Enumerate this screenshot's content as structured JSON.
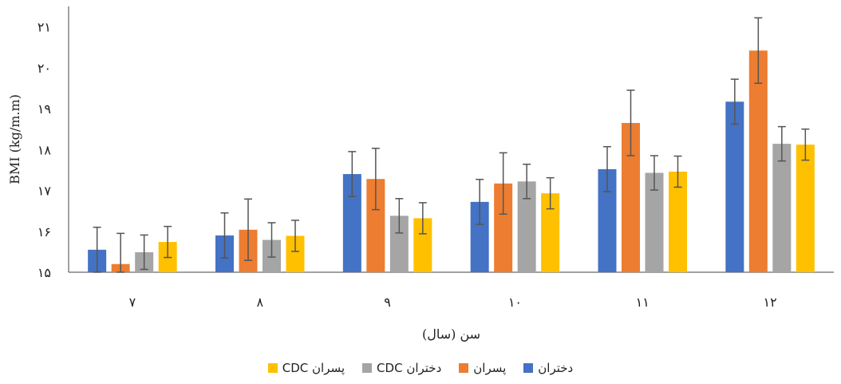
{
  "chart_data": {
    "type": "bar",
    "xlabel": "سن (سال)",
    "ylabel": "BMI (kg/m.m)",
    "ylim": [
      15,
      21.5
    ],
    "yticks": [
      {
        "value": 15,
        "label": "۱۵"
      },
      {
        "value": 16,
        "label": "۱۶"
      },
      {
        "value": 17,
        "label": "۱۷"
      },
      {
        "value": 18,
        "label": "۱۸"
      },
      {
        "value": 19,
        "label": "۱۹"
      },
      {
        "value": 20,
        "label": "۲۰"
      },
      {
        "value": 21,
        "label": "۲۱"
      }
    ],
    "categories": [
      "۷",
      "۸",
      "۹",
      "۱۰",
      "۱۱",
      "۱۲"
    ],
    "grid": false,
    "legend_position": "bottom",
    "series": [
      {
        "name": "دختران",
        "color": "#4472C4",
        "values": [
          15.55,
          15.9,
          17.4,
          16.72,
          17.52,
          19.17
        ],
        "errors": [
          0.55,
          0.55,
          0.55,
          0.55,
          0.55,
          0.55
        ]
      },
      {
        "name": "پسران",
        "color": "#ED7D31",
        "values": [
          15.2,
          16.04,
          17.28,
          17.17,
          18.65,
          20.42
        ],
        "errors": [
          0.75,
          0.75,
          0.75,
          0.75,
          0.8,
          0.8
        ]
      },
      {
        "name": "دختران CDC",
        "color": "#A5A5A5",
        "values": [
          15.49,
          15.79,
          16.38,
          17.22,
          17.43,
          18.14
        ],
        "errors": [
          0.42,
          0.42,
          0.42,
          0.42,
          0.42,
          0.42
        ]
      },
      {
        "name": "پسران CDC",
        "color": "#FFC000",
        "values": [
          15.74,
          15.89,
          16.32,
          16.93,
          17.46,
          18.12
        ],
        "errors": [
          0.38,
          0.38,
          0.38,
          0.38,
          0.38,
          0.38
        ]
      }
    ]
  }
}
